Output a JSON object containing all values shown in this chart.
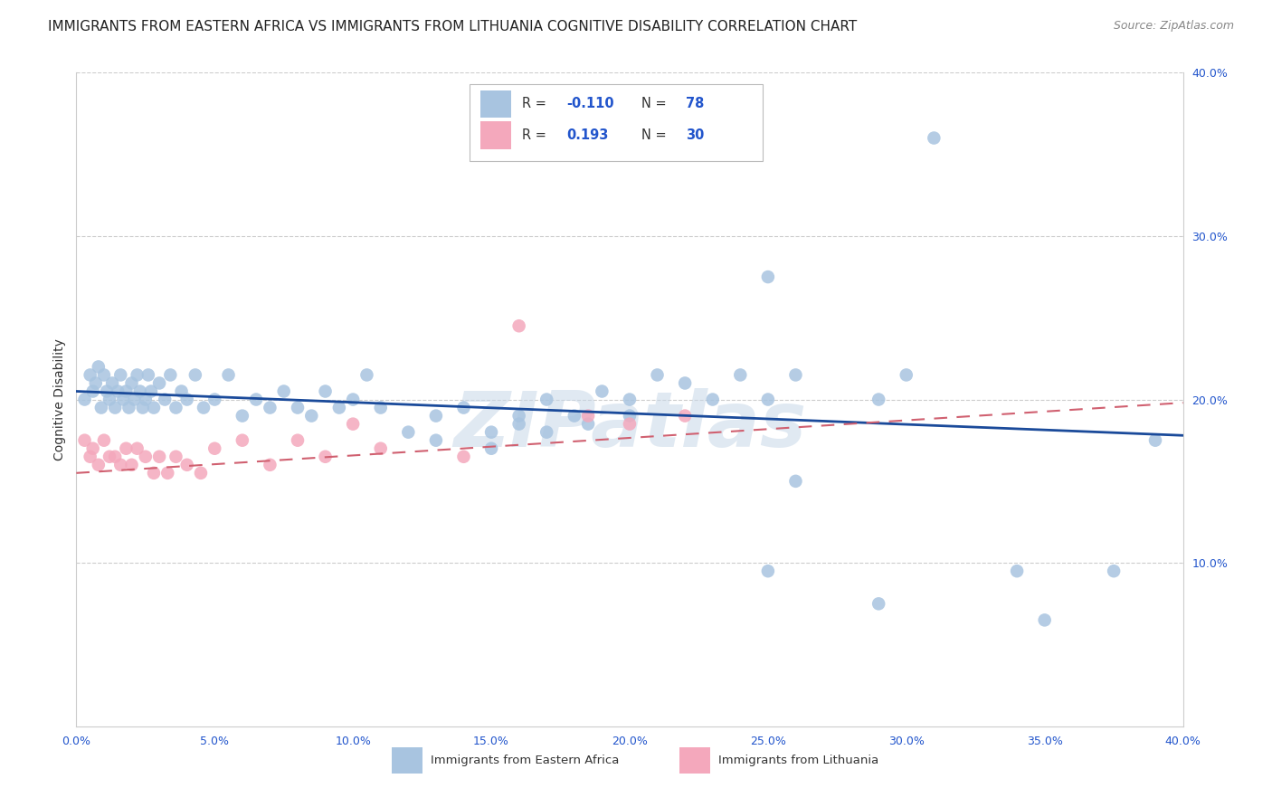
{
  "title": "IMMIGRANTS FROM EASTERN AFRICA VS IMMIGRANTS FROM LITHUANIA COGNITIVE DISABILITY CORRELATION CHART",
  "source": "Source: ZipAtlas.com",
  "ylabel": "Cognitive Disability",
  "xlim": [
    0.0,
    0.4
  ],
  "ylim": [
    0.0,
    0.4
  ],
  "x_ticks": [
    0.0,
    0.05,
    0.1,
    0.15,
    0.2,
    0.25,
    0.3,
    0.35,
    0.4
  ],
  "y_ticks_right": [
    0.1,
    0.2,
    0.3,
    0.4
  ],
  "blue_label": "Immigrants from Eastern Africa",
  "pink_label": "Immigrants from Lithuania",
  "blue_R": "-0.110",
  "blue_N": "78",
  "pink_R": "0.193",
  "pink_N": "30",
  "blue_line_color": "#1a4a9a",
  "pink_line_color": "#d06070",
  "scatter_blue_color": "#a8c4e0",
  "scatter_pink_color": "#f4a8bc",
  "background_color": "#ffffff",
  "grid_color": "#cccccc",
  "blue_scatter_x": [
    0.003,
    0.005,
    0.006,
    0.007,
    0.008,
    0.009,
    0.01,
    0.011,
    0.012,
    0.013,
    0.014,
    0.015,
    0.016,
    0.017,
    0.018,
    0.019,
    0.02,
    0.021,
    0.022,
    0.023,
    0.024,
    0.025,
    0.026,
    0.027,
    0.028,
    0.03,
    0.032,
    0.034,
    0.036,
    0.038,
    0.04,
    0.043,
    0.046,
    0.05,
    0.055,
    0.06,
    0.065,
    0.07,
    0.075,
    0.08,
    0.085,
    0.09,
    0.095,
    0.1,
    0.105,
    0.11,
    0.12,
    0.13,
    0.14,
    0.15,
    0.16,
    0.17,
    0.18,
    0.19,
    0.2,
    0.21,
    0.22,
    0.23,
    0.24,
    0.25,
    0.13,
    0.15,
    0.16,
    0.17,
    0.185,
    0.2,
    0.25,
    0.26,
    0.29,
    0.3,
    0.25,
    0.26,
    0.29,
    0.31,
    0.34,
    0.35,
    0.375,
    0.39
  ],
  "blue_scatter_y": [
    0.2,
    0.215,
    0.205,
    0.21,
    0.22,
    0.195,
    0.215,
    0.205,
    0.2,
    0.21,
    0.195,
    0.205,
    0.215,
    0.2,
    0.205,
    0.195,
    0.21,
    0.2,
    0.215,
    0.205,
    0.195,
    0.2,
    0.215,
    0.205,
    0.195,
    0.21,
    0.2,
    0.215,
    0.195,
    0.205,
    0.2,
    0.215,
    0.195,
    0.2,
    0.215,
    0.19,
    0.2,
    0.195,
    0.205,
    0.195,
    0.19,
    0.205,
    0.195,
    0.2,
    0.215,
    0.195,
    0.18,
    0.19,
    0.195,
    0.18,
    0.19,
    0.2,
    0.19,
    0.205,
    0.2,
    0.215,
    0.21,
    0.2,
    0.215,
    0.2,
    0.175,
    0.17,
    0.185,
    0.18,
    0.185,
    0.19,
    0.275,
    0.215,
    0.2,
    0.215,
    0.095,
    0.15,
    0.075,
    0.36,
    0.095,
    0.065,
    0.095,
    0.175
  ],
  "pink_scatter_x": [
    0.003,
    0.005,
    0.006,
    0.008,
    0.01,
    0.012,
    0.014,
    0.016,
    0.018,
    0.02,
    0.022,
    0.025,
    0.028,
    0.03,
    0.033,
    0.036,
    0.04,
    0.045,
    0.05,
    0.06,
    0.07,
    0.08,
    0.09,
    0.1,
    0.11,
    0.14,
    0.16,
    0.185,
    0.2,
    0.22
  ],
  "pink_scatter_y": [
    0.175,
    0.165,
    0.17,
    0.16,
    0.175,
    0.165,
    0.165,
    0.16,
    0.17,
    0.16,
    0.17,
    0.165,
    0.155,
    0.165,
    0.155,
    0.165,
    0.16,
    0.155,
    0.17,
    0.175,
    0.16,
    0.175,
    0.165,
    0.185,
    0.17,
    0.165,
    0.245,
    0.19,
    0.185,
    0.19
  ],
  "blue_trend_x": [
    0.0,
    0.4
  ],
  "blue_trend_y": [
    0.205,
    0.178
  ],
  "pink_trend_x": [
    0.0,
    0.4
  ],
  "pink_trend_y": [
    0.155,
    0.198
  ],
  "watermark": "ZIPatlas",
  "title_fontsize": 11,
  "axis_label_fontsize": 10,
  "tick_label_fontsize": 9
}
